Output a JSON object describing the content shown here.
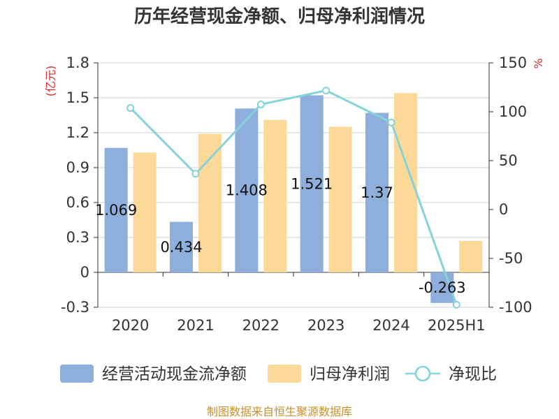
{
  "title": "历年经营现金净额、归母净利润情况",
  "source": "制图数据来自恒生聚源数据库",
  "colors": {
    "operating_cf": "#8eaedb",
    "net_profit": "#fcd899",
    "ratio": "#84d3d9",
    "axis": "#333333",
    "grid": "#d0d0d0",
    "unit": "#e0262a",
    "source": "#c8902a"
  },
  "chart_data": {
    "type": "bar",
    "title": "历年经营现金净额、归母净利润情况",
    "categories": [
      "2020",
      "2021",
      "2022",
      "2023",
      "2024",
      "2025H1"
    ],
    "left_axis": {
      "unit": "(亿元)",
      "range": [
        -0.3,
        1.8
      ],
      "ticks": [
        "1.8",
        "1.5",
        "1.2",
        "0.9",
        "0.6",
        "0.3",
        "0",
        "-0.3"
      ]
    },
    "right_axis": {
      "unit": "%",
      "range": [
        -100,
        150
      ],
      "ticks": [
        "150",
        "100",
        "50",
        "0",
        "-50",
        "-100"
      ]
    },
    "series": [
      {
        "name": "经营活动现金流净额",
        "kind": "bar",
        "axis": "left",
        "values": [
          1.069,
          0.434,
          1.408,
          1.521,
          1.37,
          -0.263
        ],
        "labels": [
          "1.069",
          "0.434",
          "1.408",
          "1.521",
          "1.37",
          "-0.263"
        ]
      },
      {
        "name": "归母净利润",
        "kind": "bar",
        "axis": "left",
        "values": [
          1.03,
          1.19,
          1.31,
          1.25,
          1.54,
          0.27
        ]
      },
      {
        "name": "净现比",
        "kind": "line",
        "axis": "right",
        "values": [
          103.8,
          36.5,
          107.5,
          121.7,
          89.0,
          -97.4
        ]
      }
    ],
    "legend": [
      "经营活动现金流净额",
      "归母净利润",
      "净现比"
    ],
    "legend_position": "bottom",
    "grid": true
  }
}
